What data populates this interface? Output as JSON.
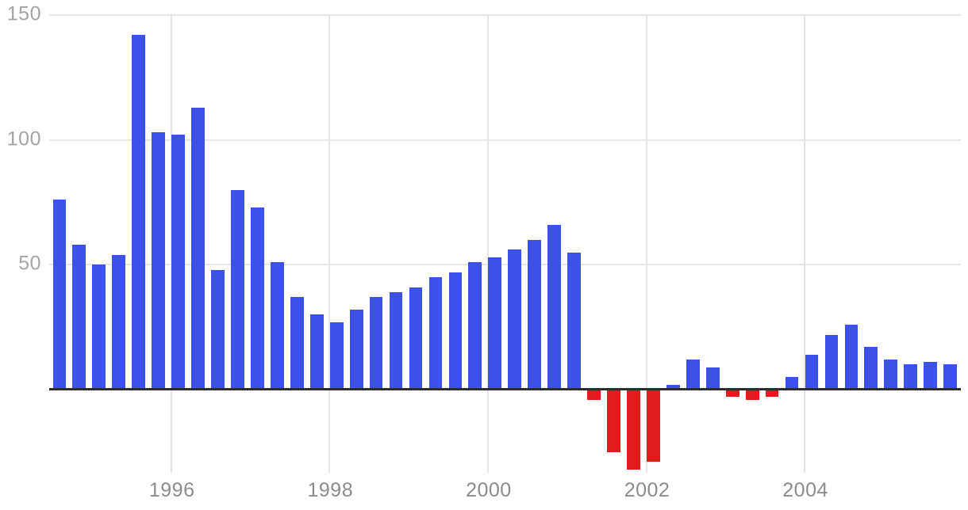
{
  "chart_data": {
    "type": "bar",
    "title": "",
    "categories": [
      "1994 Q3",
      "1994 Q4",
      "1995 Q1",
      "1995 Q2",
      "1995 Q3",
      "1995 Q4",
      "1996 Q1",
      "1996 Q2",
      "1996 Q3",
      "1996 Q4",
      "1997 Q1",
      "1997 Q2",
      "1997 Q3",
      "1997 Q4",
      "1998 Q1",
      "1998 Q2",
      "1998 Q3",
      "1998 Q4",
      "1999 Q1",
      "1999 Q2",
      "1999 Q3",
      "1999 Q4",
      "2000 Q1",
      "2000 Q2",
      "2000 Q3",
      "2000 Q4",
      "2001 Q1",
      "2001 Q2",
      "2001 Q3",
      "2001 Q4",
      "2002 Q1",
      "2002 Q2",
      "2002 Q3",
      "2002 Q4",
      "2003 Q1",
      "2003 Q2",
      "2003 Q3",
      "2003 Q4",
      "2004 Q1",
      "2004 Q2",
      "2004 Q3",
      "2004 Q4",
      "2005 Q1",
      "2005 Q2",
      "2005 Q3",
      "2005 Q4"
    ],
    "values": [
      76,
      58,
      50,
      54,
      142,
      103,
      102,
      113,
      48,
      80,
      73,
      51,
      37,
      30,
      27,
      32,
      37,
      39,
      41,
      45,
      47,
      51,
      53,
      56,
      60,
      66,
      55,
      -4,
      -25,
      -32,
      -29,
      2,
      12,
      9,
      -3,
      -4,
      -3,
      5,
      14,
      22,
      26,
      17,
      12,
      10,
      11,
      10
    ],
    "positive_color": "#3b51e8",
    "negative_color": "#e01c1c",
    "y_tick_labels": [
      "50",
      "100",
      "150"
    ],
    "y_ticks": [
      50,
      100,
      150
    ],
    "x_tick_labels": [
      "1996",
      "1998",
      "2000",
      "2002",
      "2004"
    ],
    "x_ticks": [
      1996,
      1998,
      2000,
      2002,
      2004
    ],
    "ylim": [
      -48,
      157
    ],
    "grid": true,
    "legend": "none",
    "xlabel": "",
    "ylabel": ""
  }
}
